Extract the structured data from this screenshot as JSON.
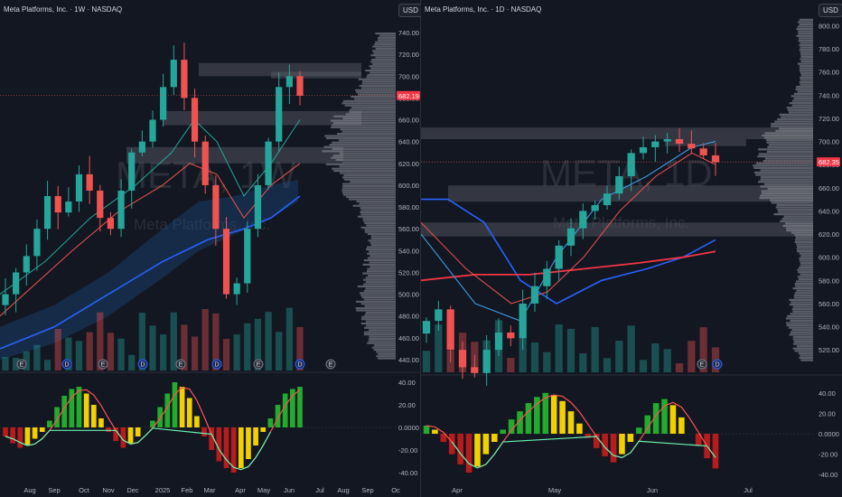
{
  "left_chart": {
    "title": "Meta Platforms, Inc. · 1W · NASDAQ",
    "currency_button": "USD",
    "watermark_symbol": "META, 1W",
    "watermark_name": "Meta Platforms, Inc.",
    "last_price_label": "682.19",
    "last_price": 682.19,
    "price_axis_labels": [
      "740.00",
      "720.00",
      "700.00",
      "680.00",
      "660.00",
      "640.00",
      "620.00",
      "600.00",
      "580.00",
      "560.00",
      "540.00",
      "520.00",
      "500.00",
      "480.00",
      "460.00",
      "440.00"
    ],
    "osc_axis_labels": [
      "40.00",
      "20.00",
      "0.0000",
      "-20.00",
      "-40.00"
    ],
    "time_labels": [
      "Aug",
      "Sep",
      "Oct",
      "Nov",
      "Dec",
      "2025",
      "Feb",
      "Mar",
      "Apr",
      "May",
      "Jun",
      "Jul",
      "Aug",
      "Sep",
      "Oc"
    ],
    "event_markers": [
      "E",
      "D",
      "E",
      "D",
      "E",
      "D",
      "E",
      "D",
      "E"
    ]
  },
  "right_chart": {
    "title": "Meta Platforms, Inc. · 1D · NASDAQ",
    "currency_button": "USD",
    "watermark_symbol": "META, 1D",
    "watermark_name": "Meta Platforms, Inc.",
    "last_price_label": "682.35",
    "last_price": 682.35,
    "price_axis_labels": [
      "800.00",
      "780.00",
      "760.00",
      "740.00",
      "720.00",
      "700.00",
      "680.00",
      "660.00",
      "640.00",
      "620.00",
      "600.00",
      "580.00",
      "560.00",
      "540.00",
      "520.00"
    ],
    "osc_axis_labels": [
      "40.00",
      "20.00",
      "0.0000",
      "-20.00",
      "-40.00"
    ],
    "time_labels": [
      "Apr",
      "May",
      "Jun",
      "Jul"
    ],
    "event_markers": [
      "E",
      "D"
    ]
  },
  "chart_data": [
    {
      "type": "candlestick",
      "title": "Meta Platforms, Inc. · 1W · NASDAQ",
      "ylim": [
        430,
        750
      ],
      "close_values_approx": [
        500,
        520,
        535,
        560,
        590,
        575,
        585,
        610,
        595,
        570,
        560,
        595,
        630,
        640,
        660,
        690,
        715,
        680,
        640,
        600,
        560,
        500,
        510,
        560,
        600,
        640,
        690,
        700,
        682
      ]
    },
    {
      "type": "candlestick",
      "title": "Meta Platforms, Inc. · 1D · NASDAQ",
      "ylim": [
        510,
        805
      ],
      "close_values_approx": [
        545,
        555,
        520,
        505,
        500,
        520,
        535,
        530,
        560,
        575,
        590,
        610,
        625,
        640,
        645,
        655,
        670,
        690,
        695,
        700,
        702,
        698,
        694,
        688,
        682
      ]
    }
  ]
}
